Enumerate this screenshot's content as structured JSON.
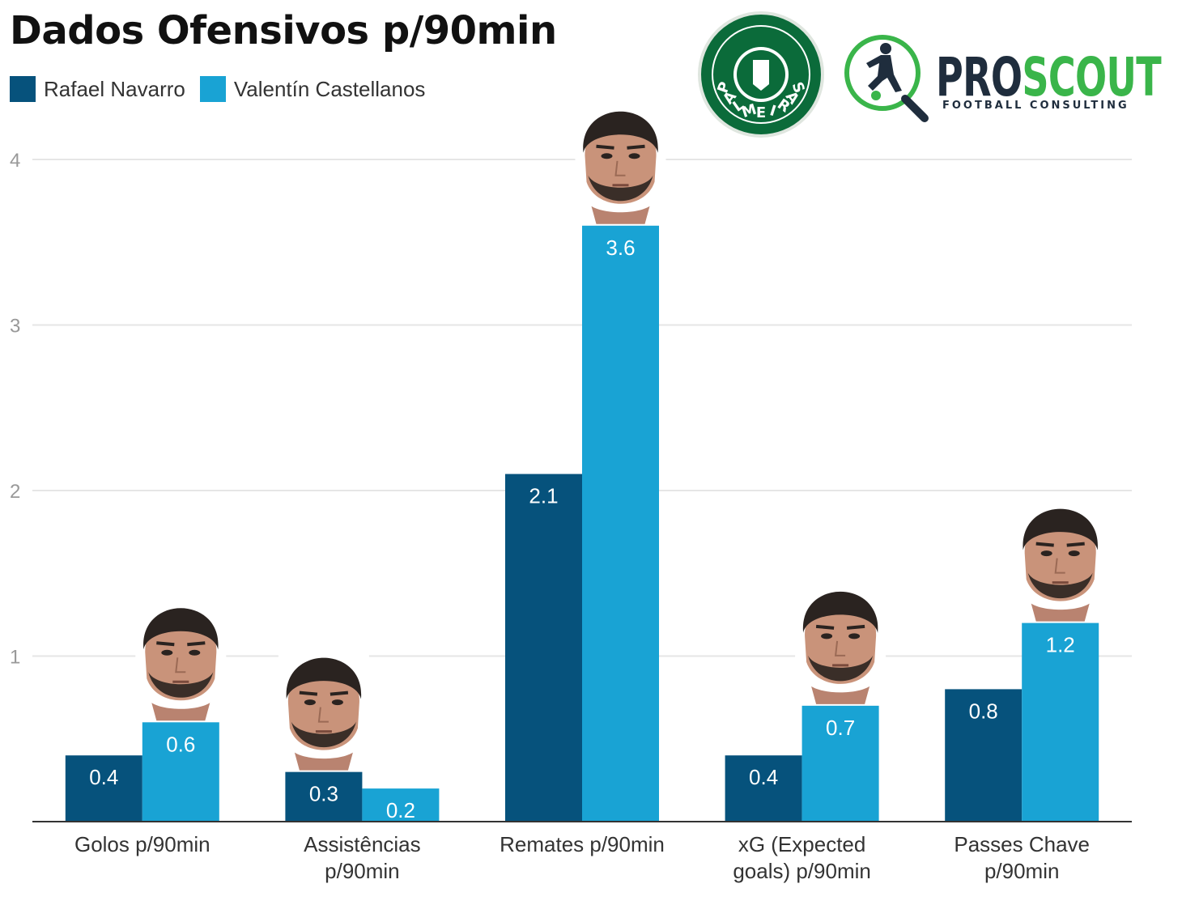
{
  "header": {
    "title": "Dados Ofensivos p/90min"
  },
  "logos": {
    "club": "PALMEIRAS",
    "brand_main": "PROSCOUT",
    "brand_sub": "FOOTBALL CONSULTING"
  },
  "colors": {
    "series1": "#06527c",
    "series2": "#19a3d4",
    "grid": "#e6e6e6",
    "axis": "#333333",
    "club_green": "#0b6b3a",
    "brand_dark": "#1f2d3d",
    "brand_green": "#3ab54a"
  },
  "chart_data": {
    "type": "bar",
    "title": "Dados Ofensivos p/90min",
    "xlabel": "",
    "ylabel": "",
    "ylim": [
      0,
      4
    ],
    "yticks": [
      1,
      2,
      3,
      4
    ],
    "grid": true,
    "legend_position": "top-left",
    "categories": [
      [
        "Golos p/90min"
      ],
      [
        "Assistências",
        "p/90min"
      ],
      [
        "Remates p/90min"
      ],
      [
        "xG (Expected",
        "goals) p/90min"
      ],
      [
        "Passes Chave",
        "p/90min"
      ]
    ],
    "series": [
      {
        "name": "Rafael Navarro",
        "color": "#06527c",
        "values": [
          0.4,
          0.3,
          2.1,
          0.4,
          0.8
        ]
      },
      {
        "name": "Valentín Castellanos",
        "color": "#19a3d4",
        "values": [
          0.6,
          0.2,
          3.6,
          0.7,
          1.2
        ]
      }
    ],
    "annotations": [
      {
        "category_index": 0,
        "icon": "player-head-icon"
      },
      {
        "category_index": 1,
        "icon": "player-head-icon"
      },
      {
        "category_index": 2,
        "icon": "player-head-icon"
      },
      {
        "category_index": 3,
        "icon": "player-head-icon"
      },
      {
        "category_index": 4,
        "icon": "player-head-icon"
      }
    ]
  }
}
